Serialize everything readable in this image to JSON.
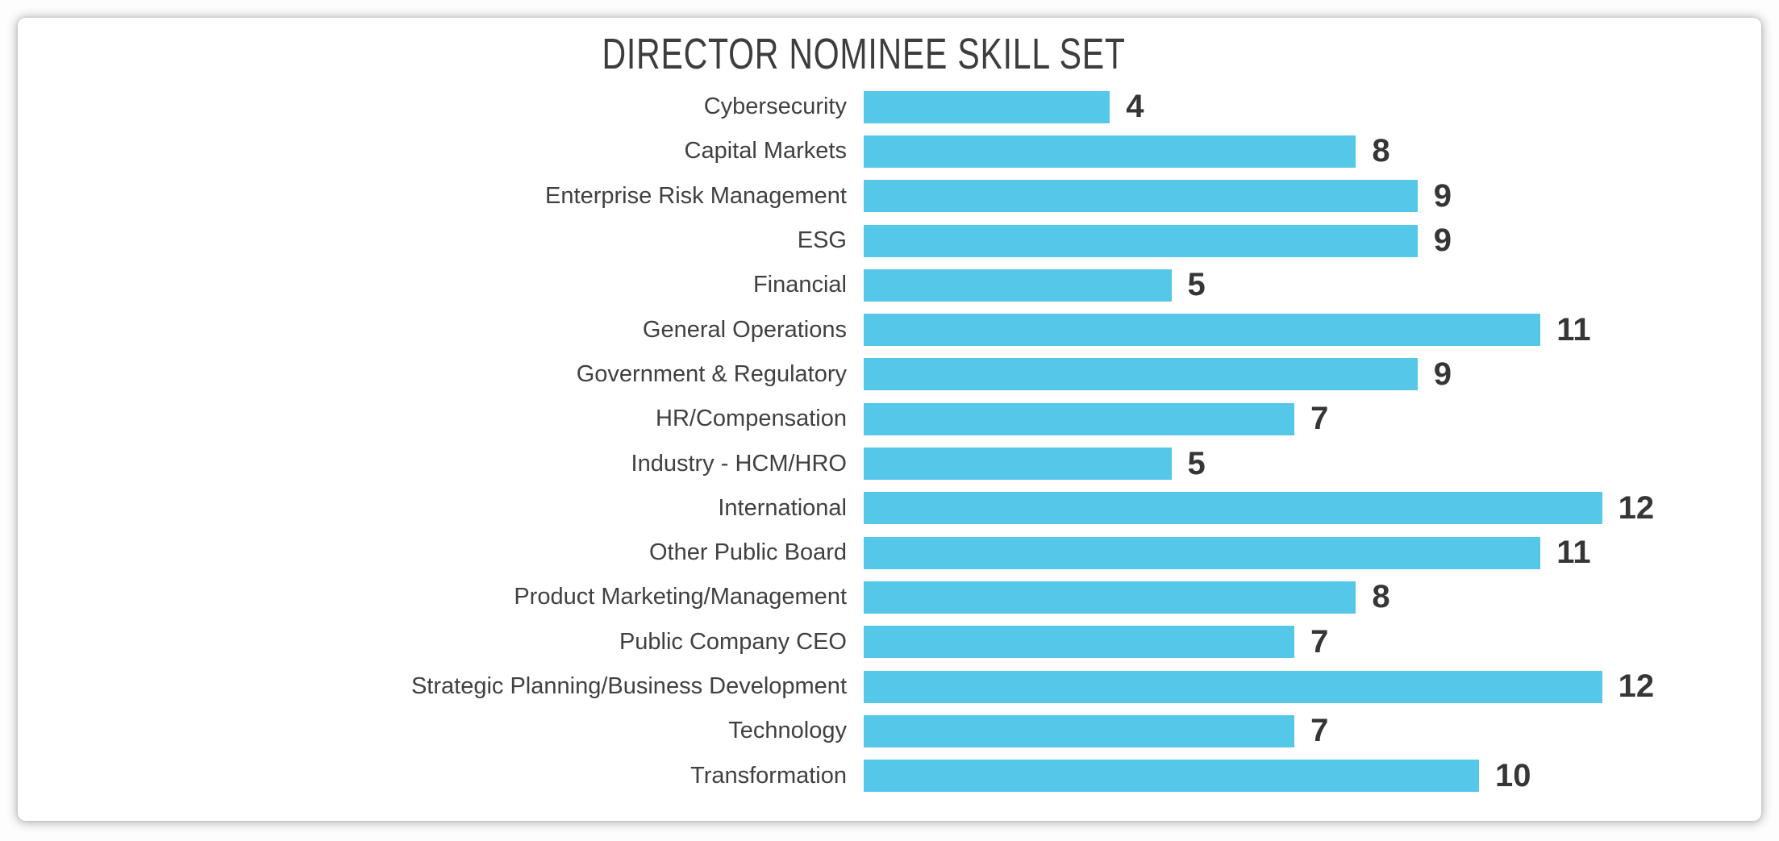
{
  "page": {
    "title": "DIRECTOR NOMINEE SKILL SET"
  },
  "colors": {
    "bar_fill": "#55C7E8",
    "title_text": "#3d3d3d",
    "category_text": "#404040",
    "value_text": "#363636",
    "card_background": "#ffffff"
  },
  "chart_data": {
    "type": "bar",
    "orientation": "horizontal",
    "title": "DIRECTOR NOMINEE SKILL SET",
    "xlabel": "",
    "ylabel": "",
    "xlim": [
      0,
      12
    ],
    "grid": false,
    "legend": false,
    "data_labels": true,
    "bar_color": "#55C7E8",
    "categories": [
      "Cybersecurity",
      "Capital Markets",
      "Enterprise Risk Management",
      "ESG",
      "Financial",
      "General Operations",
      "Government & Regulatory",
      "HR/Compensation",
      "Industry - HCM/HRO",
      "International",
      "Other Public Board",
      "Product Marketing/Management",
      "Public Company CEO",
      "Strategic Planning/Business Development",
      "Technology",
      "Transformation"
    ],
    "values": [
      4,
      8,
      9,
      9,
      5,
      11,
      9,
      7,
      5,
      12,
      11,
      8,
      7,
      12,
      7,
      10
    ]
  }
}
